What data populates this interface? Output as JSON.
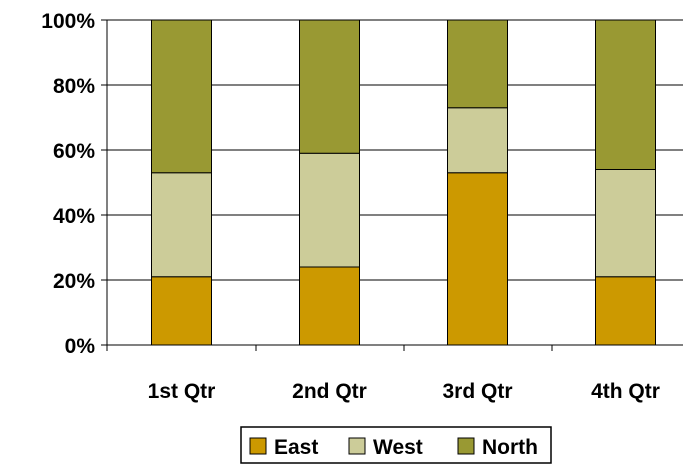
{
  "chart_data": {
    "type": "bar",
    "stacked": "percent",
    "categories": [
      "1st Qtr",
      "2nd Qtr",
      "3rd Qtr",
      "4th Qtr"
    ],
    "series": [
      {
        "name": "East",
        "values": [
          21,
          24,
          53,
          21
        ],
        "color": "#cc9900"
      },
      {
        "name": "West",
        "values": [
          32,
          35,
          20,
          33
        ],
        "color": "#cccc99"
      },
      {
        "name": "North",
        "values": [
          47,
          41,
          27,
          46
        ],
        "color": "#999933"
      }
    ],
    "ylim": [
      0,
      100
    ],
    "yticks": [
      "0%",
      "20%",
      "40%",
      "60%",
      "80%",
      "100%"
    ],
    "grid": true,
    "legend": "bottom"
  }
}
